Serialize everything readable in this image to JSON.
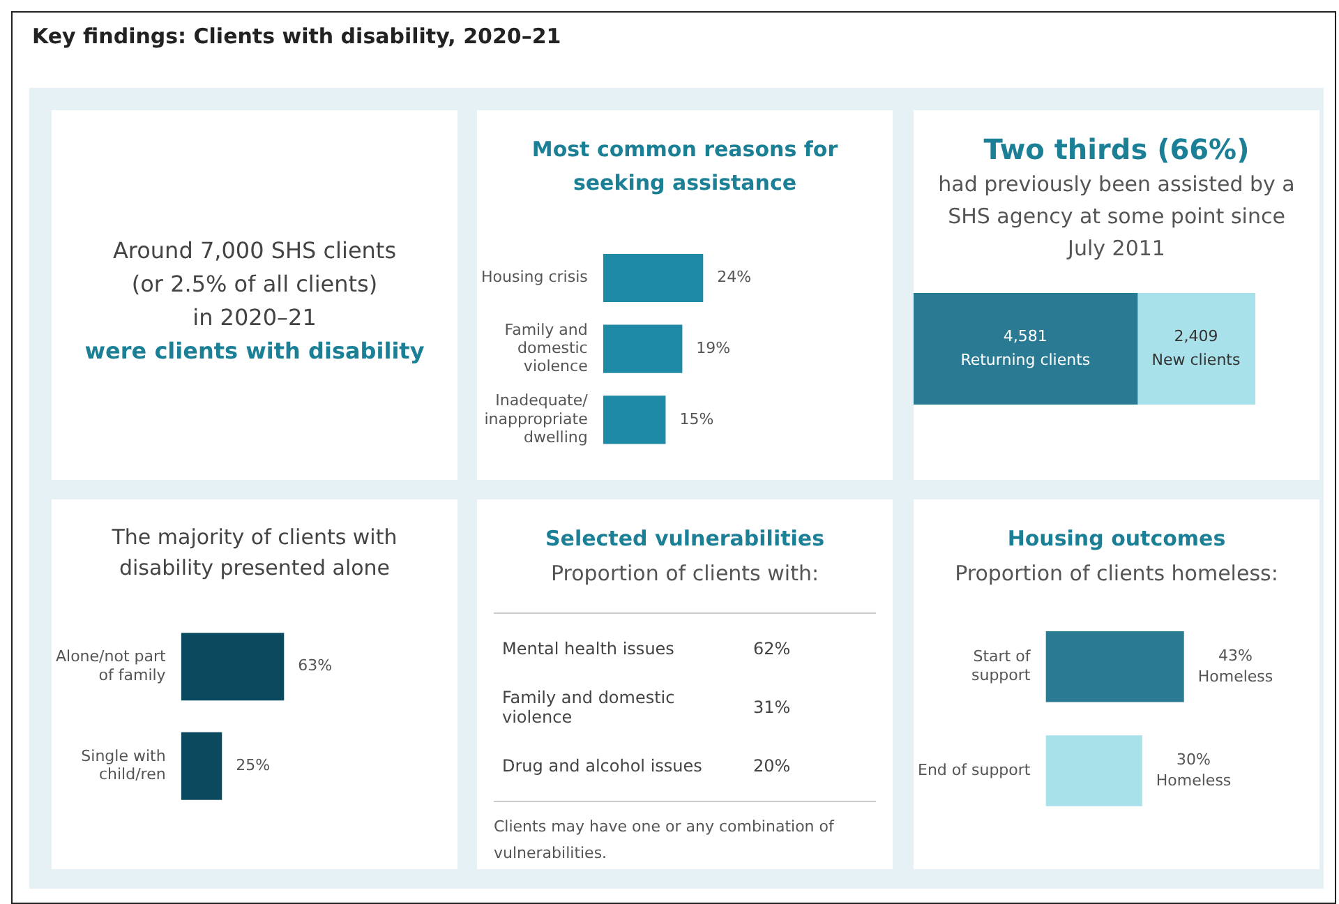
{
  "chart_data": [
    {
      "type": "other",
      "title": "Key findings: Clients with disability, 2020–21",
      "annotations": [
        "Around 7,000 SHS clients",
        "(or 2.5% of all clients)",
        "in 2020–21",
        "were clients with disability"
      ]
    },
    {
      "type": "bar",
      "orientation": "horizontal",
      "title": "Most common reasons for seeking assistance",
      "categories": [
        "Housing crisis",
        "Family and domestic violence",
        "Inadequate/ inappropriate dwelling"
      ],
      "values": [
        24,
        19,
        15
      ],
      "value_labels": [
        "24%",
        "19%",
        "15%"
      ],
      "color": "#1f8aa6",
      "tick_labels": "y",
      "grid": false,
      "legend": false
    },
    {
      "type": "bar",
      "orientation": "horizontal",
      "stacked": true,
      "title": "Two thirds (66%)",
      "subtitle": "had previously been assisted by a SHS agency at some point since July 2011",
      "categories": [
        null
      ],
      "series": [
        {
          "name": "Returning clients",
          "color": "#2a7a94",
          "values": [
            4581
          ],
          "value_labels": [
            "4,581"
          ]
        },
        {
          "name": "New clients",
          "color": "#a9e1ea",
          "values": [
            2409
          ],
          "value_labels": [
            "2,409"
          ]
        }
      ],
      "tick_labels": false,
      "grid": false,
      "legend": false
    },
    {
      "type": "bar",
      "orientation": "horizontal",
      "title": "The majority of clients with disability presented alone",
      "categories": [
        "Alone/not part of family",
        "Single with child/ren"
      ],
      "values": [
        63,
        25
      ],
      "value_labels": [
        "63%",
        "25%"
      ],
      "color": "#0b4a5e",
      "tick_labels": "y",
      "grid": false,
      "legend": false
    },
    {
      "type": "other",
      "title": "Selected vulnerabilities",
      "subtitle": "Proportion of clients with:",
      "categories": [
        "Mental health issues",
        "Family and domestic violence",
        "Drug and alcohol issues"
      ],
      "value_labels": [
        "62%",
        "31%",
        "20%"
      ],
      "annotations": [
        "Clients may have one or any combination of vulnerabilities."
      ]
    },
    {
      "type": "bar",
      "orientation": "horizontal",
      "title": "Housing outcomes",
      "subtitle": "Proportion of clients homeless:",
      "categories": [
        "Start of support",
        "End of support"
      ],
      "values": [
        43,
        30
      ],
      "value_labels": [
        "43% Homeless",
        "30% Homeless"
      ],
      "colors": [
        "#2a7a94",
        "#a9e1ea"
      ],
      "tick_labels": "y",
      "grid": false,
      "legend": false
    }
  ]
}
